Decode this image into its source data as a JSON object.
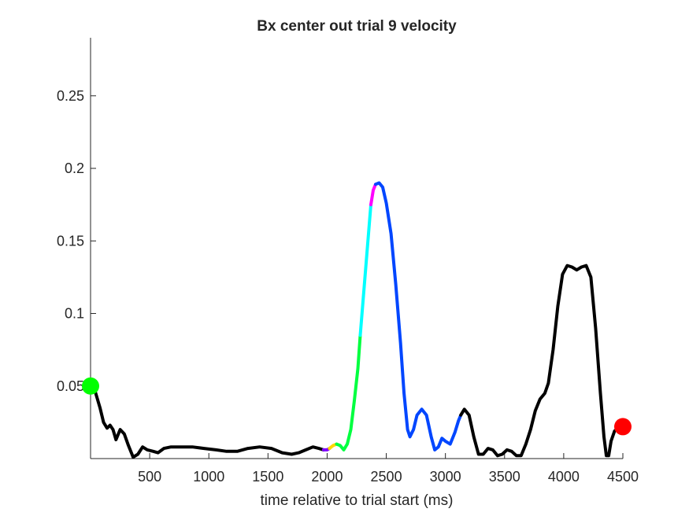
{
  "chart_data": {
    "type": "line",
    "title": "Bx  center out trial 9 velocity",
    "xlabel": "time relative to trial start (ms)",
    "ylabel": "",
    "xlim": [
      0,
      4500
    ],
    "ylim": [
      0,
      0.29
    ],
    "x_ticks": [
      500,
      1000,
      1500,
      2000,
      2500,
      3000,
      3500,
      4000,
      4500
    ],
    "y_ticks": [
      0.05,
      0.1,
      0.15,
      0.2,
      0.25
    ],
    "x_tick_labels": [
      "500",
      "1000",
      "1500",
      "2000",
      "2500",
      "3000",
      "3500",
      "4000",
      "4500"
    ],
    "y_tick_labels": [
      "0.05",
      "0.1",
      "0.15",
      "0.2",
      "0.25"
    ],
    "grid": false,
    "box": "left-bottom axes only",
    "line_width": "thick",
    "series": [
      {
        "color": "#000000",
        "points": [
          [
            0,
            0.05
          ],
          [
            40,
            0.046
          ],
          [
            80,
            0.035
          ],
          [
            110,
            0.025
          ],
          [
            140,
            0.021
          ],
          [
            165,
            0.023
          ],
          [
            190,
            0.02
          ],
          [
            215,
            0.013
          ],
          [
            250,
            0.02
          ],
          [
            285,
            0.017
          ],
          [
            320,
            0.009
          ],
          [
            360,
            0.001
          ],
          [
            400,
            0.003
          ],
          [
            440,
            0.008
          ],
          [
            480,
            0.006
          ],
          [
            530,
            0.005
          ],
          [
            570,
            0.004
          ],
          [
            620,
            0.007
          ],
          [
            680,
            0.008
          ],
          [
            760,
            0.008
          ],
          [
            860,
            0.008
          ],
          [
            960,
            0.007
          ],
          [
            1060,
            0.006
          ],
          [
            1150,
            0.005
          ],
          [
            1240,
            0.005
          ],
          [
            1330,
            0.007
          ],
          [
            1430,
            0.008
          ],
          [
            1530,
            0.007
          ],
          [
            1620,
            0.004
          ],
          [
            1700,
            0.003
          ],
          [
            1760,
            0.004
          ],
          [
            1820,
            0.006
          ],
          [
            1880,
            0.008
          ],
          [
            1930,
            0.007
          ],
          [
            1970,
            0.006
          ]
        ]
      },
      {
        "color": "#7f00ff",
        "points": [
          [
            1970,
            0.006
          ],
          [
            2000,
            0.006
          ],
          [
            2020,
            0.007
          ]
        ]
      },
      {
        "color": "#ffd700",
        "points": [
          [
            2020,
            0.007
          ],
          [
            2050,
            0.009
          ],
          [
            2080,
            0.01
          ]
        ]
      },
      {
        "color": "#00ff40",
        "points": [
          [
            2080,
            0.01
          ],
          [
            2110,
            0.009
          ],
          [
            2140,
            0.006
          ],
          [
            2170,
            0.01
          ],
          [
            2200,
            0.02
          ],
          [
            2230,
            0.04
          ],
          [
            2260,
            0.062
          ],
          [
            2280,
            0.085
          ]
        ]
      },
      {
        "color": "#00ffff",
        "points": [
          [
            2280,
            0.085
          ],
          [
            2310,
            0.115
          ],
          [
            2340,
            0.145
          ],
          [
            2370,
            0.175
          ]
        ]
      },
      {
        "color": "#ff00ff",
        "points": [
          [
            2370,
            0.175
          ],
          [
            2390,
            0.185
          ],
          [
            2410,
            0.189
          ]
        ]
      },
      {
        "color": "#0046ff",
        "points": [
          [
            2410,
            0.189
          ],
          [
            2440,
            0.19
          ],
          [
            2470,
            0.187
          ],
          [
            2500,
            0.176
          ],
          [
            2540,
            0.155
          ],
          [
            2580,
            0.12
          ],
          [
            2620,
            0.08
          ],
          [
            2650,
            0.045
          ],
          [
            2680,
            0.02
          ],
          [
            2700,
            0.015
          ],
          [
            2730,
            0.02
          ],
          [
            2760,
            0.03
          ],
          [
            2800,
            0.034
          ],
          [
            2840,
            0.03
          ],
          [
            2880,
            0.015
          ],
          [
            2910,
            0.006
          ],
          [
            2940,
            0.008
          ],
          [
            2970,
            0.014
          ],
          [
            3000,
            0.012
          ],
          [
            3040,
            0.01
          ],
          [
            3080,
            0.018
          ],
          [
            3110,
            0.026
          ],
          [
            3130,
            0.03
          ]
        ]
      },
      {
        "color": "#000000",
        "points": [
          [
            3130,
            0.03
          ],
          [
            3160,
            0.034
          ],
          [
            3200,
            0.03
          ],
          [
            3240,
            0.015
          ],
          [
            3280,
            0.003
          ],
          [
            3320,
            0.003
          ],
          [
            3360,
            0.007
          ],
          [
            3400,
            0.006
          ],
          [
            3440,
            0.002
          ],
          [
            3480,
            0.003
          ],
          [
            3520,
            0.006
          ],
          [
            3560,
            0.005
          ],
          [
            3600,
            0.002
          ],
          [
            3640,
            0.002
          ],
          [
            3680,
            0.01
          ],
          [
            3720,
            0.02
          ],
          [
            3760,
            0.033
          ],
          [
            3800,
            0.041
          ],
          [
            3840,
            0.045
          ],
          [
            3870,
            0.052
          ],
          [
            3910,
            0.075
          ],
          [
            3950,
            0.105
          ],
          [
            3990,
            0.127
          ],
          [
            4030,
            0.133
          ],
          [
            4070,
            0.132
          ],
          [
            4110,
            0.13
          ],
          [
            4150,
            0.132
          ],
          [
            4190,
            0.133
          ],
          [
            4230,
            0.125
          ],
          [
            4270,
            0.09
          ],
          [
            4310,
            0.045
          ],
          [
            4340,
            0.015
          ],
          [
            4360,
            0.002
          ],
          [
            4380,
            0.002
          ],
          [
            4400,
            0.012
          ],
          [
            4430,
            0.019
          ],
          [
            4460,
            0.021
          ],
          [
            4490,
            0.022
          ]
        ]
      }
    ],
    "markers": [
      {
        "x": 0,
        "y": 0.05,
        "color": "#00ff00"
      },
      {
        "x": 4500,
        "y": 0.022,
        "color": "#ff0000"
      }
    ]
  }
}
